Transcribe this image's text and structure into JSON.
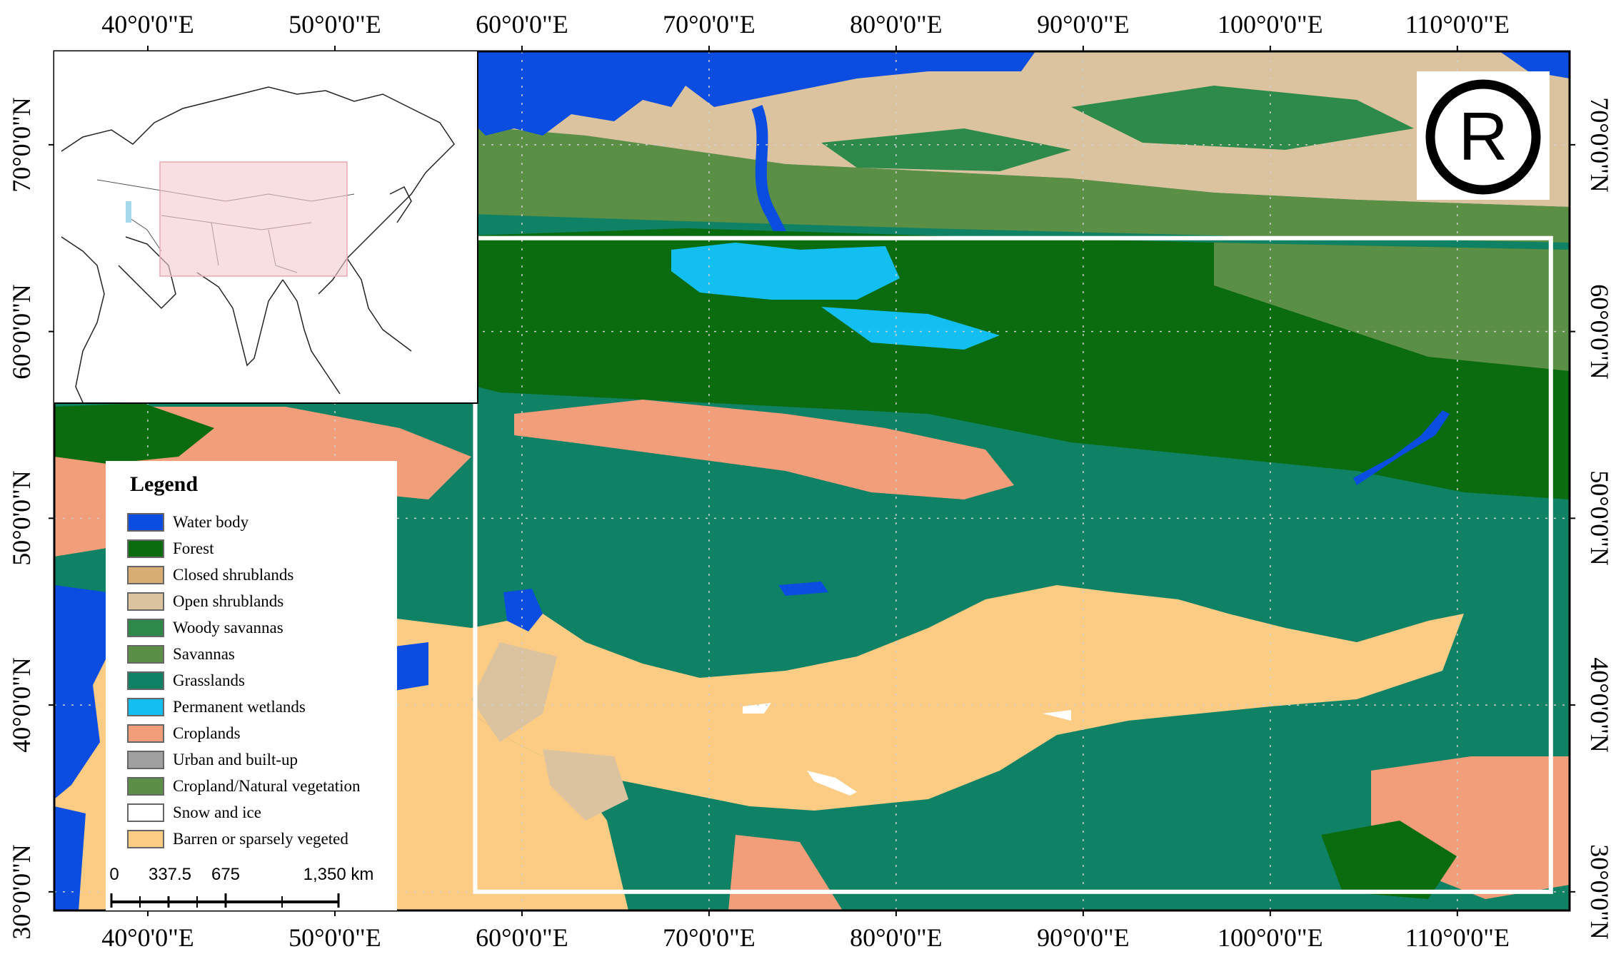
{
  "map": {
    "top_labels": [
      "40°0'0\"E",
      "50°0'0\"E",
      "60°0'0\"E",
      "70°0'0\"E",
      "80°0'0\"E",
      "90°0'0\"E",
      "100°0'0\"E",
      "110°0'0\"E"
    ],
    "bottom_labels": [
      "40°0'0\"E",
      "50°0'0\"E",
      "60°0'0\"E",
      "70°0'0\"E",
      "80°0'0\"E",
      "90°0'0\"E",
      "100°0'0\"E",
      "110°0'0\"E"
    ],
    "left_labels": [
      "70°0'0\"N",
      "60°0'0\"N",
      "50°0'0\"N",
      "40°0'0\"N",
      "30°0'0\"N"
    ],
    "right_labels": [
      "70°0'0\"N",
      "60°0'0\"N",
      "50°0'0\"N",
      "40°0'0\"N",
      "30°0'0\"N"
    ],
    "lon_range": [
      35,
      116
    ],
    "lat_range": [
      29,
      75
    ],
    "study_area": {
      "lon": [
        57.5,
        115
      ],
      "lat": [
        30,
        65
      ]
    }
  },
  "legend": {
    "title": "Legend",
    "items": [
      {
        "label": "Water body",
        "color": "#0a4de0"
      },
      {
        "label": "Forest",
        "color": "#0b6b0f"
      },
      {
        "label": "Closed shrublands",
        "color": "#d8ad74"
      },
      {
        "label": "Open shrublands",
        "color": "#dcc39f"
      },
      {
        "label": "Woody savannas",
        "color": "#2e8a4a"
      },
      {
        "label": "Savannas",
        "color": "#5a8f45"
      },
      {
        "label": "Grasslands",
        "color": "#0f8164"
      },
      {
        "label": "Permanent wetlands",
        "color": "#13bff0"
      },
      {
        "label": "Croplands",
        "color": "#f29e7a"
      },
      {
        "label": "Urban and built-up",
        "color": "#a0a0a0"
      },
      {
        "label": "Cropland/Natural vegetation",
        "color": "#5d8e47"
      },
      {
        "label": "Snow and ice",
        "color": "#ffffff"
      },
      {
        "label": "Barren or sparsely vegeted",
        "color": "#fccb84"
      }
    ]
  },
  "scale_bar": {
    "labels": [
      "0",
      "337.5",
      "675",
      "1,350 km"
    ]
  },
  "logo_symbol": "registered-trademark-icon"
}
